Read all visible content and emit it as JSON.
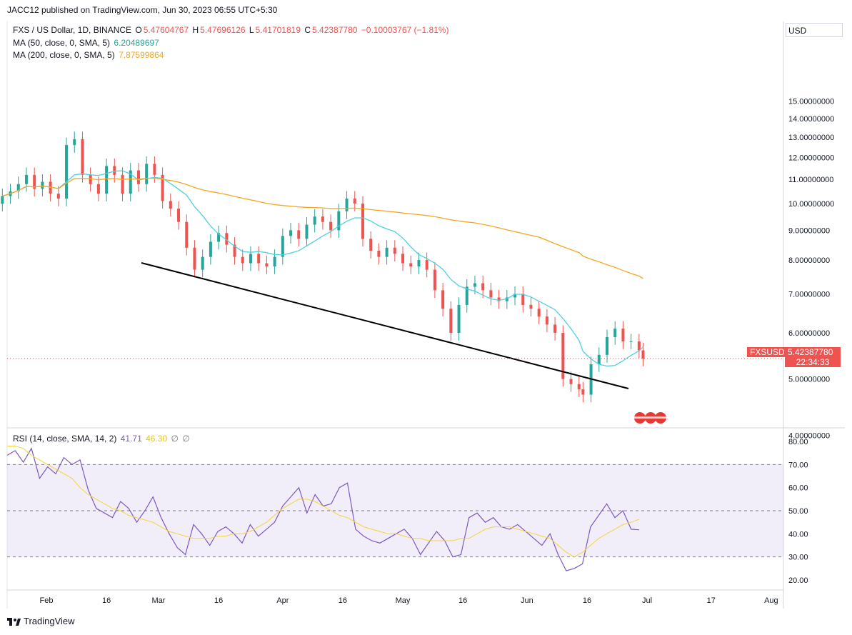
{
  "header": {
    "publisher": "JACC12 published on TradingView.com, Jun 30, 2023 06:55 UTC+5:30"
  },
  "legend": {
    "symbol": "FXS / US Dollar, 1D, BINANCE",
    "o_label": "O",
    "o": "5.47604767",
    "h_label": "H",
    "h": "5.47696126",
    "l_label": "L",
    "l": "5.41701819",
    "c_label": "C",
    "c": "5.42387780",
    "change": "−0.10003767 (−1.81%)",
    "ma50_label": "MA (50, close, 0, SMA, 5)",
    "ma50_value": "6.20489697",
    "ma200_label": "MA (200, close, 0, SMA, 5)",
    "ma200_value": "7.87599864",
    "rsi_label": "RSI (14, close, SMA, 14, 2)",
    "rsi_value": "41.71",
    "rsi_ma_value": "46.30",
    "rsi_extra1": "∅",
    "rsi_extra2": "∅"
  },
  "currency": "USD",
  "price_badge": {
    "symbol": "FXSUSD",
    "price": "5.42387780",
    "countdown": "22:34:33"
  },
  "footer": {
    "brand": "TradingView"
  },
  "colors": {
    "up": "#26a69a",
    "down": "#ef5350",
    "ma50": "#4dd0e1",
    "ma200": "#f5a623",
    "rsi": "#7e57c2",
    "rsi_ma": "#f5d33a",
    "trendline": "#000000"
  },
  "chart_data": [
    {
      "type": "candlestick",
      "title": "FXS / US Dollar, 1D, BINANCE",
      "y_axis": {
        "scale": "log",
        "ticks": [
          "4.00000000",
          "5.00000000",
          "6.00000000",
          "7.00000000",
          "8.00000000",
          "9.00000000",
          "10.00000000",
          "11.00000000",
          "12.00000000",
          "13.00000000",
          "14.00000000",
          "15.00000000"
        ]
      },
      "x_axis": {
        "ticks": [
          "Feb",
          "16",
          "Mar",
          "16",
          "Apr",
          "16",
          "May",
          "16",
          "Jun",
          "16",
          "Jul",
          "17",
          "Aug"
        ]
      },
      "close_series": [
        [
          "2023-01-21",
          10.3
        ],
        [
          "2023-01-23",
          10.5
        ],
        [
          "2023-01-25",
          10.8
        ],
        [
          "2023-01-27",
          11.2
        ],
        [
          "2023-01-29",
          10.6
        ],
        [
          "2023-01-31",
          10.9
        ],
        [
          "2023-02-02",
          10.4
        ],
        [
          "2023-02-04",
          10.2
        ],
        [
          "2023-02-06",
          12.6
        ],
        [
          "2023-02-08",
          12.9
        ],
        [
          "2023-02-10",
          11.2
        ],
        [
          "2023-02-12",
          10.8
        ],
        [
          "2023-02-14",
          10.4
        ],
        [
          "2023-02-16",
          11.6
        ],
        [
          "2023-02-18",
          11.2
        ],
        [
          "2023-02-20",
          10.4
        ],
        [
          "2023-02-22",
          11.4
        ],
        [
          "2023-02-24",
          10.8
        ],
        [
          "2023-02-26",
          11.7
        ],
        [
          "2023-02-28",
          11.2
        ],
        [
          "2023-03-02",
          10.1
        ],
        [
          "2023-03-04",
          9.8
        ],
        [
          "2023-03-06",
          9.3
        ],
        [
          "2023-03-08",
          8.4
        ],
        [
          "2023-03-10",
          7.7
        ],
        [
          "2023-03-12",
          8.1
        ],
        [
          "2023-03-14",
          8.6
        ],
        [
          "2023-03-16",
          8.9
        ],
        [
          "2023-03-18",
          8.5
        ],
        [
          "2023-03-20",
          8.1
        ],
        [
          "2023-03-22",
          7.9
        ],
        [
          "2023-03-24",
          8.2
        ],
        [
          "2023-03-26",
          7.9
        ],
        [
          "2023-03-28",
          7.8
        ],
        [
          "2023-03-30",
          8.1
        ],
        [
          "2023-04-01",
          8.8
        ],
        [
          "2023-04-03",
          9.0
        ],
        [
          "2023-04-05",
          8.7
        ],
        [
          "2023-04-07",
          9.2
        ],
        [
          "2023-04-09",
          9.5
        ],
        [
          "2023-04-11",
          9.3
        ],
        [
          "2023-04-13",
          9.0
        ],
        [
          "2023-04-15",
          9.7
        ],
        [
          "2023-04-17",
          10.2
        ],
        [
          "2023-04-19",
          10.0
        ],
        [
          "2023-04-21",
          8.7
        ],
        [
          "2023-04-23",
          8.3
        ],
        [
          "2023-04-25",
          8.1
        ],
        [
          "2023-04-27",
          8.4
        ],
        [
          "2023-04-29",
          8.2
        ],
        [
          "2023-05-01",
          7.9
        ],
        [
          "2023-05-03",
          7.8
        ],
        [
          "2023-05-05",
          8.0
        ],
        [
          "2023-05-07",
          7.7
        ],
        [
          "2023-05-09",
          7.1
        ],
        [
          "2023-05-11",
          6.6
        ],
        [
          "2023-05-13",
          6.0
        ],
        [
          "2023-05-15",
          6.7
        ],
        [
          "2023-05-17",
          7.2
        ],
        [
          "2023-05-19",
          7.3
        ],
        [
          "2023-05-21",
          7.1
        ],
        [
          "2023-05-23",
          6.9
        ],
        [
          "2023-05-25",
          6.8
        ],
        [
          "2023-05-27",
          6.9
        ],
        [
          "2023-05-29",
          7.0
        ],
        [
          "2023-05-31",
          6.7
        ],
        [
          "2023-06-02",
          6.6
        ],
        [
          "2023-06-04",
          6.4
        ],
        [
          "2023-06-06",
          6.2
        ],
        [
          "2023-06-08",
          6.0
        ],
        [
          "2023-06-10",
          5.0
        ],
        [
          "2023-06-12",
          4.9
        ],
        [
          "2023-06-14",
          4.8
        ],
        [
          "2023-06-15",
          4.7
        ],
        [
          "2023-06-17",
          5.3
        ],
        [
          "2023-06-19",
          5.5
        ],
        [
          "2023-06-21",
          5.9
        ],
        [
          "2023-06-23",
          6.1
        ],
        [
          "2023-06-25",
          5.8
        ],
        [
          "2023-06-27",
          5.8
        ],
        [
          "2023-06-29",
          5.6
        ],
        [
          "2023-06-30",
          5.42
        ]
      ],
      "overlays": [
        {
          "name": "MA (50, close, 0, SMA, 5)",
          "last": 6.20489697
        },
        {
          "name": "MA (200, close, 0, SMA, 5)",
          "last": 7.87599864
        }
      ],
      "last_price": 5.4238778
    },
    {
      "type": "line",
      "title": "RSI (14, close, SMA, 14, 2)",
      "y_axis": {
        "ticks": [
          "20.00",
          "30.00",
          "40.00",
          "50.00",
          "60.00",
          "70.00",
          "80.00"
        ]
      },
      "bands": {
        "upper": 70,
        "middle": 50,
        "lower": 30
      },
      "series": [
        {
          "name": "RSI",
          "values": [
            74,
            76,
            71,
            77,
            64,
            69,
            66,
            73,
            70,
            72,
            59,
            51,
            49,
            47,
            54,
            51,
            45,
            50,
            56,
            47,
            40,
            34,
            31,
            44,
            40,
            35,
            41,
            43,
            40,
            36,
            44,
            39,
            42,
            45,
            52,
            56,
            60,
            49,
            57,
            52,
            53,
            60,
            62,
            42,
            39,
            37,
            36,
            38,
            40,
            42,
            38,
            31,
            36,
            41,
            37,
            30,
            31,
            47,
            49,
            45,
            47,
            43,
            42,
            44,
            41,
            38,
            35,
            40,
            31,
            24,
            25,
            27,
            43,
            48,
            53,
            47,
            50,
            42,
            41.71
          ]
        },
        {
          "name": "RSI-based MA",
          "values": [
            78,
            78,
            77,
            74,
            72,
            70,
            68,
            66,
            64,
            60,
            57,
            55,
            53,
            51,
            50,
            48,
            47,
            46,
            45,
            43,
            41,
            40,
            39,
            38,
            38,
            38,
            39,
            39,
            40,
            40,
            41,
            43,
            45,
            48,
            51,
            53,
            55,
            55,
            54,
            52,
            50,
            48,
            47,
            45,
            43,
            42,
            41,
            40,
            40,
            39,
            38,
            38,
            37,
            37,
            37,
            37,
            38,
            38,
            40,
            42,
            43,
            43,
            43,
            42,
            41,
            40,
            39,
            38,
            35,
            32,
            30,
            32,
            35,
            38,
            40,
            42,
            44,
            45,
            46.3
          ]
        }
      ]
    }
  ]
}
